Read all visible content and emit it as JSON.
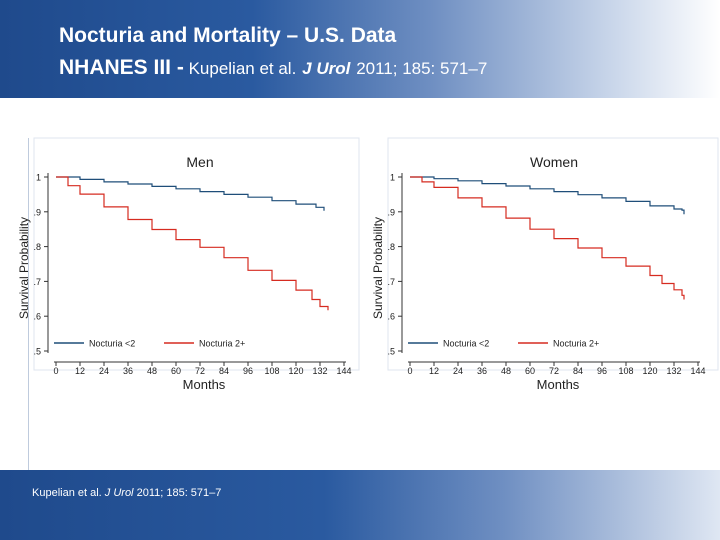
{
  "header": {
    "title_line1": "Nocturia and Mortality – U.S. Data",
    "title_line2_bold": "NHANES III -",
    "title_line2_text": " Kupelian et al.",
    "journal": "J Urol",
    "citation": "2011; 185: 571–7"
  },
  "footer": {
    "prefix": "Kupelian et al.",
    "journal": "J Urol",
    "citation": "2011; 185: 571–7"
  },
  "colors": {
    "nocturia_lt2": "#1f4e79",
    "nocturia_2plus": "#d62b20"
  },
  "chart_data": [
    {
      "type": "line",
      "title": "Men",
      "xlabel": "Months",
      "ylabel": "Survival Probability",
      "xlim": [
        0,
        144
      ],
      "ylim": [
        0.5,
        1.0
      ],
      "xticks": [
        0,
        12,
        24,
        36,
        48,
        60,
        72,
        84,
        96,
        108,
        120,
        132,
        144
      ],
      "yticks": [
        ".5",
        ".6",
        ".7",
        ".8",
        ".9",
        "1"
      ],
      "legend": [
        "Nocturia <2",
        "Nocturia 2+"
      ],
      "series": [
        {
          "name": "Nocturia <2",
          "x": [
            0,
            12,
            24,
            36,
            48,
            60,
            72,
            84,
            96,
            108,
            120,
            130,
            134
          ],
          "y": [
            1.0,
            0.993,
            0.986,
            0.98,
            0.973,
            0.966,
            0.958,
            0.95,
            0.942,
            0.932,
            0.922,
            0.913,
            0.903
          ]
        },
        {
          "name": "Nocturia 2+",
          "x": [
            0,
            6,
            12,
            24,
            36,
            48,
            60,
            72,
            84,
            96,
            108,
            120,
            128,
            132,
            136
          ],
          "y": [
            1.0,
            0.975,
            0.951,
            0.914,
            0.878,
            0.849,
            0.82,
            0.798,
            0.768,
            0.732,
            0.703,
            0.675,
            0.648,
            0.628,
            0.617
          ]
        }
      ]
    },
    {
      "type": "line",
      "title": "Women",
      "xlabel": "Months",
      "ylabel": "Survival Probability",
      "xlim": [
        0,
        144
      ],
      "ylim": [
        0.5,
        1.0
      ],
      "xticks": [
        0,
        12,
        24,
        36,
        48,
        60,
        72,
        84,
        96,
        108,
        120,
        132,
        144
      ],
      "yticks": [
        ".5",
        ".6",
        ".7",
        ".8",
        ".9",
        "1"
      ],
      "legend": [
        "Nocturia <2",
        "Nocturia 2+"
      ],
      "series": [
        {
          "name": "Nocturia <2",
          "x": [
            0,
            12,
            24,
            36,
            48,
            60,
            72,
            84,
            96,
            108,
            120,
            132,
            136,
            137
          ],
          "y": [
            1.0,
            0.995,
            0.989,
            0.981,
            0.974,
            0.966,
            0.958,
            0.949,
            0.94,
            0.93,
            0.917,
            0.908,
            0.905,
            0.893
          ]
        },
        {
          "name": "Nocturia 2+",
          "x": [
            0,
            6,
            12,
            24,
            36,
            48,
            60,
            72,
            84,
            96,
            108,
            120,
            126,
            132,
            136,
            137
          ],
          "y": [
            1.0,
            0.986,
            0.97,
            0.94,
            0.914,
            0.882,
            0.85,
            0.823,
            0.796,
            0.768,
            0.744,
            0.717,
            0.694,
            0.676,
            0.66,
            0.648
          ]
        }
      ]
    }
  ]
}
